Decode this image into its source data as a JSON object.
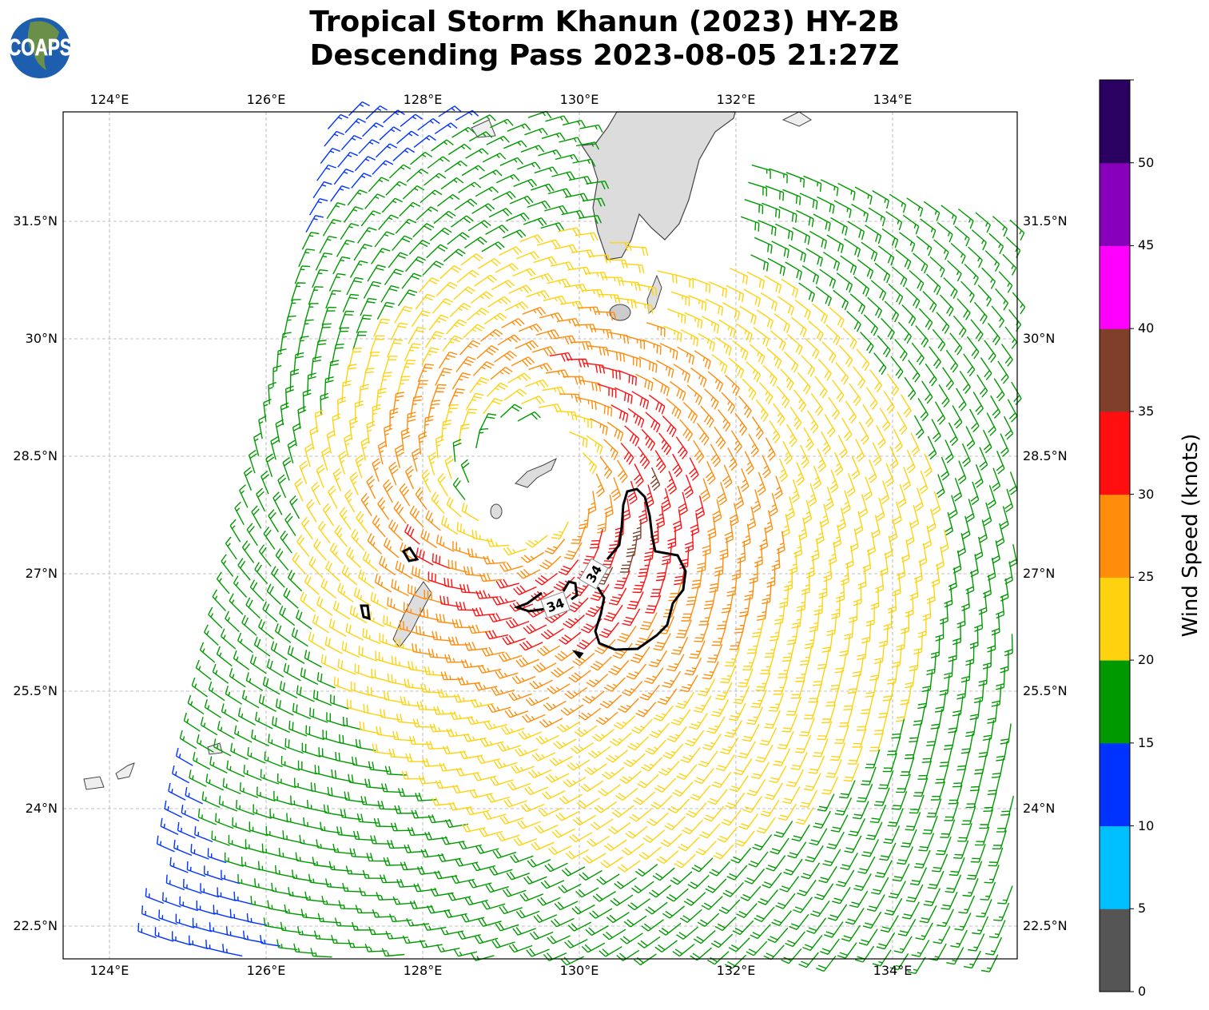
{
  "title": {
    "line1": "Tropical Storm Khanun (2023) HY-2B",
    "line2": "Descending Pass 2023-08-05 21:27Z"
  },
  "logo": {
    "text": "COAPS"
  },
  "lon_labels": [
    "124°E",
    "126°E",
    "128°E",
    "130°E",
    "132°E",
    "134°E"
  ],
  "lon_values": [
    124,
    126,
    128,
    130,
    132,
    134
  ],
  "lat_labels": [
    "31.5°N",
    "30°N",
    "28.5°N",
    "27°N",
    "25.5°N",
    "24°N",
    "22.5°N"
  ],
  "lat_values": [
    31.5,
    30,
    28.5,
    27,
    25.5,
    24,
    22.5
  ],
  "contour": {
    "label": "34"
  },
  "colorbar": {
    "label": "Wind Speed (knots)",
    "ticks": [
      "0",
      "5",
      "10",
      "15",
      "20",
      "25",
      "30",
      "35",
      "40",
      "45",
      "50"
    ],
    "colors": [
      "#555555",
      "#00bfff",
      "#0033ff",
      "#009900",
      "#ffd20f",
      "#ff8c0a",
      "#ff0f0f",
      "#7f3f2a",
      "#ff00ff",
      "#8800bb",
      "#2a0060"
    ]
  }
}
